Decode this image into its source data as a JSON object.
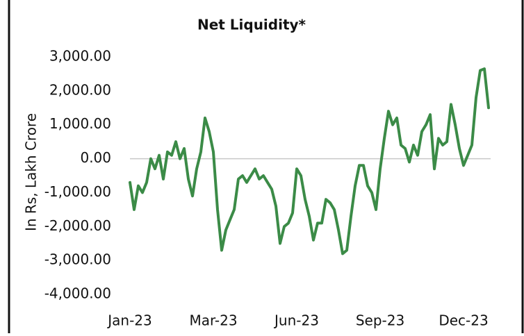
{
  "chart_data": {
    "type": "line",
    "title": "Net Liquidity*",
    "y_label": "In Rs, Lakh Crore",
    "categories": [
      "Jan-23",
      null,
      null,
      null,
      null,
      null,
      null,
      null,
      null,
      null,
      null,
      null,
      null,
      null,
      null,
      null,
      null,
      null,
      null,
      null,
      "Mar-23",
      null,
      null,
      null,
      null,
      null,
      null,
      null,
      null,
      null,
      null,
      null,
      null,
      null,
      null,
      null,
      null,
      null,
      null,
      null,
      "Jun-23",
      null,
      null,
      null,
      null,
      null,
      null,
      null,
      null,
      null,
      null,
      null,
      null,
      null,
      null,
      null,
      null,
      null,
      null,
      null,
      "Sep-23",
      null,
      null,
      null,
      null,
      null,
      null,
      null,
      null,
      null,
      null,
      null,
      null,
      null,
      null,
      null,
      null,
      null,
      null,
      null,
      "Dec-23",
      null,
      null,
      null,
      null,
      null,
      null
    ],
    "series": [
      {
        "name": "Net Liquidity",
        "color": "#3b8b47",
        "values": [
          -700,
          -1500,
          -800,
          -1000,
          -700,
          0,
          -300,
          100,
          -600,
          200,
          100,
          500,
          0,
          300,
          -600,
          -1100,
          -300,
          200,
          1200,
          800,
          200,
          -1500,
          -2700,
          -2100,
          -1800,
          -1500,
          -600,
          -500,
          -700,
          -500,
          -300,
          -600,
          -500,
          -700,
          -900,
          -1400,
          -2500,
          -2000,
          -1900,
          -1600,
          -300,
          -500,
          -1200,
          -1700,
          -2400,
          -1900,
          -1900,
          -1200,
          -1300,
          -1500,
          -2100,
          -2800,
          -2700,
          -1700,
          -800,
          -200,
          -200,
          -800,
          -1000,
          -1500,
          -300,
          600,
          1400,
          1000,
          1200,
          400,
          300,
          -100,
          400,
          100,
          800,
          1000,
          1300,
          -300,
          600,
          400,
          500,
          1600,
          1000,
          300,
          -200,
          100,
          400,
          1800,
          2600,
          2650,
          1500
        ]
      }
    ],
    "ylim": [
      -4000,
      3000
    ],
    "yticks": [
      {
        "value": -4000,
        "label": "-4,000.00"
      },
      {
        "value": -3000,
        "label": "-3,000.00"
      },
      {
        "value": -2000,
        "label": "-2,000.00"
      },
      {
        "value": -1000,
        "label": "-1,000.00"
      },
      {
        "value": 0,
        "label": "0.00"
      },
      {
        "value": 1000,
        "label": "1,000.00"
      },
      {
        "value": 2000,
        "label": "2,000.00"
      },
      {
        "value": 3000,
        "label": "3,000.00"
      }
    ],
    "grid": false
  }
}
